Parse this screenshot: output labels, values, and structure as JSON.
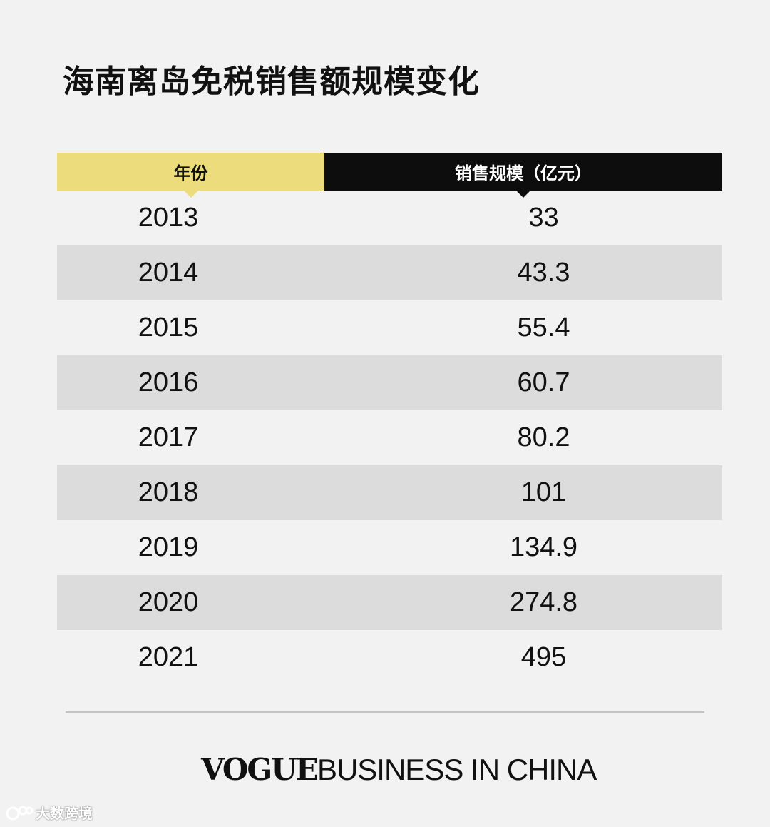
{
  "title": "海南离岛免税销售额规模变化",
  "table": {
    "headers": [
      "年份",
      "销售规模（亿元）"
    ],
    "rows": [
      {
        "year": "2013",
        "value": "33"
      },
      {
        "year": "2014",
        "value": "43.3"
      },
      {
        "year": "2015",
        "value": "55.4"
      },
      {
        "year": "2016",
        "value": "60.7"
      },
      {
        "year": "2017",
        "value": "80.2"
      },
      {
        "year": "2018",
        "value": "101"
      },
      {
        "year": "2019",
        "value": "134.9"
      },
      {
        "year": "2020",
        "value": "274.8"
      },
      {
        "year": "2021",
        "value": "495"
      }
    ]
  },
  "brand": {
    "vogue": "VOGUE",
    "rest": "BUSINESS IN CHINA"
  },
  "watermark": "大数跨境",
  "colors": {
    "header_year_bg": "#ecdc7c",
    "header_sales_bg": "#0d0d0d",
    "alt_row_bg": "#dcdcdc",
    "page_bg": "#f2f2f2"
  },
  "chart_data": {
    "type": "table",
    "title": "海南离岛免税销售额规模变化",
    "columns": [
      "年份",
      "销售规模（亿元）"
    ],
    "x": [
      2013,
      2014,
      2015,
      2016,
      2017,
      2018,
      2019,
      2020,
      2021
    ],
    "values": [
      33,
      43.3,
      55.4,
      60.7,
      80.2,
      101,
      134.9,
      274.8,
      495
    ]
  }
}
